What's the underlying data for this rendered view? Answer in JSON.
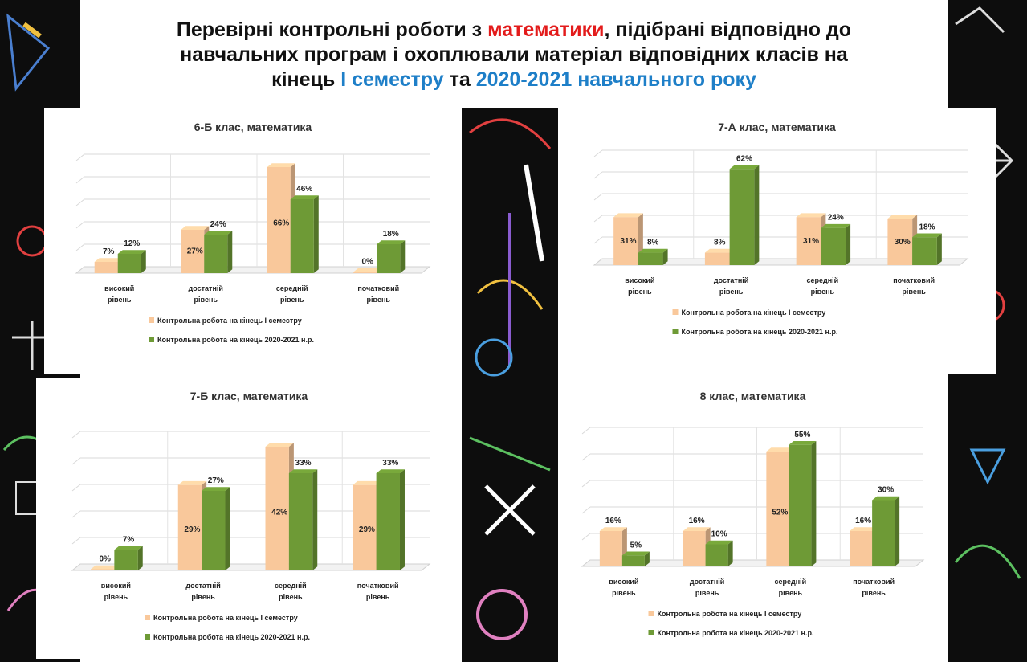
{
  "title": {
    "line1_a": "Перевірні контрольні роботи з ",
    "line1_b": "математики",
    "line1_c": ", підібрані відповідно до",
    "line2": "навчальних програм і охоплювали матеріал відповідних класів на",
    "line3_a": "кінець ",
    "line3_b": "І семестру",
    "line3_c": " та ",
    "line3_d": "2020-2021 навчального року"
  },
  "colors": {
    "series1": "#f9c89b",
    "series2": "#6e9a36",
    "red": "#e31b1b",
    "blue": "#1e7fc8",
    "background_strip": "#0d0d0d"
  },
  "legend": {
    "s1": "Контрольна робота на кінець І семестру",
    "s2": "Контрольна робота на кінець 2020-2021 н.р."
  },
  "chart_data": [
    {
      "type": "bar",
      "title": "6-Б клас, математика",
      "categories": [
        "високий рівень",
        "достатній рівень",
        "середній рівень",
        "початковий рівень"
      ],
      "series": [
        {
          "name": "Контрольна робота на кінець І семестру",
          "values": [
            7,
            27,
            66,
            0
          ]
        },
        {
          "name": "Контрольна робота на кінець 2020-2021 н.р.",
          "values": [
            12,
            24,
            46,
            18
          ]
        }
      ],
      "labels": [
        [
          "7%",
          "27%",
          "66%",
          "0%"
        ],
        [
          "12%",
          "24%",
          "46%",
          "18%"
        ]
      ],
      "ylim": [
        0,
        70
      ],
      "grid": true,
      "legend": "bottom"
    },
    {
      "type": "bar",
      "title": "7-А клас, математика",
      "categories": [
        "високий рівень",
        "достатній рівень",
        "середній рівень",
        "початковий рівень"
      ],
      "series": [
        {
          "name": "Контрольна робота на кінець І семестру",
          "values": [
            31,
            8,
            31,
            30
          ]
        },
        {
          "name": "Контрольна робота на кінець 2020-2021 н.р.",
          "values": [
            8,
            62,
            24,
            18
          ]
        }
      ],
      "labels": [
        [
          "31%",
          "8%",
          "31%",
          "30%"
        ],
        [
          "8%",
          "62%",
          "24%",
          "18%"
        ]
      ],
      "ylim": [
        0,
        70
      ],
      "grid": true,
      "legend": "bottom"
    },
    {
      "type": "bar",
      "title": "7-Б клас, математика",
      "categories": [
        "високий рівень",
        "достатній рівень",
        "середній рівень",
        "початковий рівень"
      ],
      "series": [
        {
          "name": "Контрольна робота на кінець І семестру",
          "values": [
            0,
            29,
            42,
            29
          ]
        },
        {
          "name": "Контрольна робота на кінець 2020-2021 н.р.",
          "values": [
            7,
            27,
            33,
            33
          ]
        }
      ],
      "labels": [
        [
          "0%",
          "29%",
          "42%",
          "29%"
        ],
        [
          "7%",
          "27%",
          "33%",
          "33%"
        ]
      ],
      "ylim": [
        0,
        45
      ],
      "grid": true,
      "legend": "bottom"
    },
    {
      "type": "bar",
      "title": "8 клас, математика",
      "categories": [
        "високий рівень",
        "достатній рівень",
        "середній рівень",
        "початковий рівень"
      ],
      "series": [
        {
          "name": "Контрольна робота на кінець І семестру",
          "values": [
            16,
            16,
            52,
            16
          ]
        },
        {
          "name": "Контрольна робота на кінець 2020-2021 н.р.",
          "values": [
            5,
            10,
            55,
            30
          ]
        }
      ],
      "labels": [
        [
          "16%",
          "16%",
          "52%",
          "16%"
        ],
        [
          "5%",
          "10%",
          "55%",
          "30%"
        ]
      ],
      "ylim": [
        0,
        60
      ],
      "grid": true,
      "legend": "bottom"
    }
  ]
}
